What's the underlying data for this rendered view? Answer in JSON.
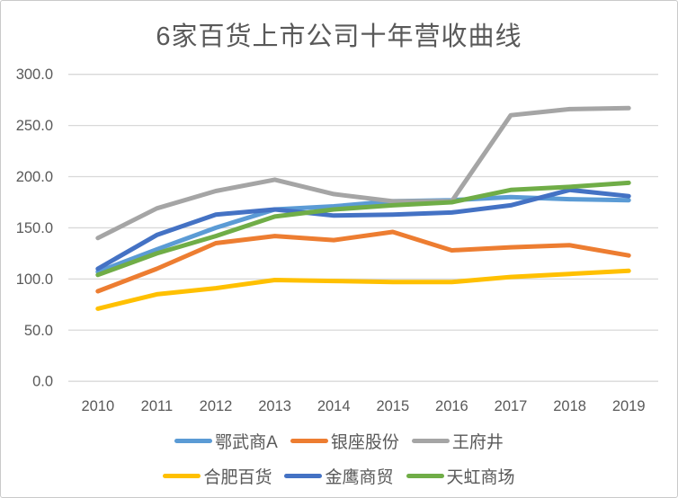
{
  "chart_data": {
    "type": "line",
    "title": "6家百货上市公司十年营收曲线",
    "categories": [
      "2010",
      "2011",
      "2012",
      "2013",
      "2014",
      "2015",
      "2016",
      "2017",
      "2018",
      "2019"
    ],
    "series": [
      {
        "name": "鄂武商A",
        "color": "#5B9BD5",
        "values": [
          107,
          129,
          150,
          168,
          171,
          176,
          177,
          180,
          178,
          177
        ]
      },
      {
        "name": "银座股份",
        "color": "#ED7D31",
        "values": [
          88,
          110,
          135,
          142,
          138,
          146,
          128,
          131,
          133,
          123
        ]
      },
      {
        "name": "王府井",
        "color": "#A5A5A5",
        "values": [
          140,
          169,
          186,
          197,
          183,
          176,
          176,
          260,
          266,
          267
        ]
      },
      {
        "name": "合肥百货",
        "color": "#FFC000",
        "values": [
          71,
          85,
          91,
          99,
          98,
          97,
          97,
          102,
          105,
          108
        ]
      },
      {
        "name": "金鹰商贸",
        "color": "#4472C4",
        "values": [
          110,
          143,
          163,
          168,
          162,
          163,
          165,
          172,
          187,
          181
        ]
      },
      {
        "name": "天虹商场",
        "color": "#70AD47",
        "values": [
          104,
          125,
          142,
          161,
          168,
          172,
          175,
          187,
          190,
          194
        ]
      }
    ],
    "ylim": [
      0,
      300
    ],
    "yticks": [
      {
        "label": "300.0",
        "value": 300
      },
      {
        "label": "250.0",
        "value": 250
      },
      {
        "label": "200.0",
        "value": 200
      },
      {
        "label": "150.0",
        "value": 150
      },
      {
        "label": "100.0",
        "value": 100
      },
      {
        "label": "50.0",
        "value": 50
      },
      {
        "label": "0.0",
        "value": 0
      }
    ],
    "grid": "horizontal",
    "gridline_color": "#D9D9D9",
    "axis_label_color": "#595959",
    "title_color": "#595959",
    "legend_position": "bottom",
    "legend_items_per_row": 3
  }
}
